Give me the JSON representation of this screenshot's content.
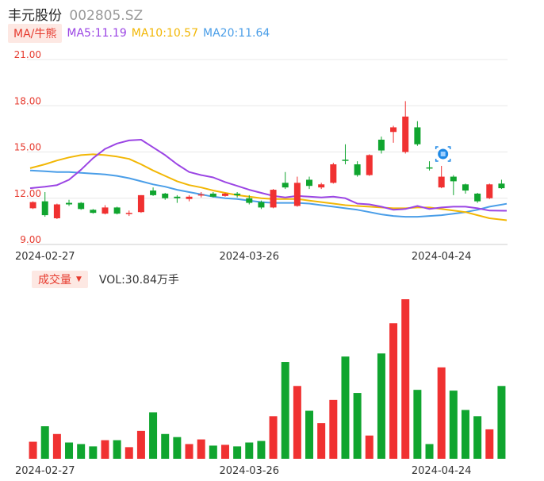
{
  "header": {
    "name": "丰元股份",
    "code": "002805.SZ"
  },
  "ma_legend": {
    "tag": "MA/牛熊",
    "items": [
      {
        "label": "MA5:11.19",
        "color": "#9b45e4"
      },
      {
        "label": "MA10:10.57",
        "color": "#f2b705"
      },
      {
        "label": "MA20:11.64",
        "color": "#4a9ee8"
      }
    ]
  },
  "volume_legend": {
    "tag": "成交量",
    "caret": "▼",
    "label": "VOL:30.84万手"
  },
  "colors": {
    "up": "#f03131",
    "down": "#10a52f",
    "axis_label": "#e63a2e",
    "grid": "#e8e8e8",
    "date_label": "#333333"
  },
  "chart_data": [
    {
      "type": "candlestick",
      "y_ticks": [
        "21.00",
        "18.00",
        "15.00",
        "12.00",
        "9.00"
      ],
      "y_tick_values": [
        21,
        18,
        15,
        12,
        9
      ],
      "ylim": [
        9,
        21
      ],
      "x_labels": [
        "2024-02-27",
        "2024-03-26",
        "2024-04-24"
      ],
      "x_label_indices": [
        1,
        18,
        34
      ],
      "candles": [
        {
          "o": 11.35,
          "c": 11.75,
          "h": 11.8,
          "l": 11.3
        },
        {
          "o": 11.8,
          "c": 10.9,
          "h": 12.4,
          "l": 10.8
        },
        {
          "o": 10.7,
          "c": 11.6,
          "h": 11.65,
          "l": 10.65
        },
        {
          "o": 11.7,
          "c": 11.6,
          "h": 11.9,
          "l": 11.5
        },
        {
          "o": 11.7,
          "c": 11.3,
          "h": 11.75,
          "l": 11.25
        },
        {
          "o": 11.25,
          "c": 11.05,
          "h": 11.3,
          "l": 11.0
        },
        {
          "o": 11.0,
          "c": 11.4,
          "h": 11.55,
          "l": 10.95
        },
        {
          "o": 11.4,
          "c": 11.0,
          "h": 11.45,
          "l": 10.95
        },
        {
          "o": 11.0,
          "c": 11.05,
          "h": 11.2,
          "l": 10.85
        },
        {
          "o": 11.1,
          "c": 12.2,
          "h": 12.2,
          "l": 11.05
        },
        {
          "o": 12.5,
          "c": 12.2,
          "h": 12.7,
          "l": 12.15
        },
        {
          "o": 12.3,
          "c": 12.0,
          "h": 12.35,
          "l": 11.9
        },
        {
          "o": 12.1,
          "c": 12.0,
          "h": 12.2,
          "l": 11.7
        },
        {
          "o": 11.95,
          "c": 12.1,
          "h": 12.2,
          "l": 11.8
        },
        {
          "o": 12.2,
          "c": 12.25,
          "h": 12.4,
          "l": 12.05
        },
        {
          "o": 12.3,
          "c": 12.1,
          "h": 12.4,
          "l": 12.05
        },
        {
          "o": 12.15,
          "c": 12.3,
          "h": 12.35,
          "l": 12.1
        },
        {
          "o": 12.3,
          "c": 12.2,
          "h": 12.4,
          "l": 12.05
        },
        {
          "o": 12.0,
          "c": 11.7,
          "h": 12.2,
          "l": 11.6
        },
        {
          "o": 11.75,
          "c": 11.4,
          "h": 11.85,
          "l": 11.3
        },
        {
          "o": 11.4,
          "c": 12.55,
          "h": 12.6,
          "l": 11.35
        },
        {
          "o": 13.0,
          "c": 12.7,
          "h": 13.7,
          "l": 12.6
        },
        {
          "o": 11.5,
          "c": 13.0,
          "h": 13.4,
          "l": 11.45
        },
        {
          "o": 13.2,
          "c": 12.8,
          "h": 13.4,
          "l": 12.6
        },
        {
          "o": 12.7,
          "c": 12.9,
          "h": 13.0,
          "l": 12.6
        },
        {
          "o": 13.0,
          "c": 14.2,
          "h": 14.3,
          "l": 12.95
        },
        {
          "o": 14.5,
          "c": 14.45,
          "h": 15.5,
          "l": 14.2
        },
        {
          "o": 14.2,
          "c": 13.5,
          "h": 14.4,
          "l": 13.4
        },
        {
          "o": 13.5,
          "c": 14.8,
          "h": 14.85,
          "l": 13.45
        },
        {
          "o": 15.8,
          "c": 15.1,
          "h": 16.0,
          "l": 14.9
        },
        {
          "o": 16.3,
          "c": 16.6,
          "h": 16.7,
          "l": 15.6
        },
        {
          "o": 15.0,
          "c": 17.3,
          "h": 18.3,
          "l": 14.9
        },
        {
          "o": 16.6,
          "c": 15.5,
          "h": 17.0,
          "l": 15.4
        },
        {
          "o": 14.0,
          "c": 13.95,
          "h": 14.4,
          "l": 13.8
        },
        {
          "o": 12.7,
          "c": 13.4,
          "h": 14.1,
          "l": 12.65
        },
        {
          "o": 13.4,
          "c": 13.1,
          "h": 13.5,
          "l": 12.2
        },
        {
          "o": 12.9,
          "c": 12.5,
          "h": 12.95,
          "l": 12.3
        },
        {
          "o": 12.3,
          "c": 11.8,
          "h": 12.35,
          "l": 11.7
        },
        {
          "o": 12.0,
          "c": 12.9,
          "h": 12.95,
          "l": 11.95
        },
        {
          "o": 12.95,
          "c": 12.65,
          "h": 13.2,
          "l": 12.6
        }
      ],
      "ma5": [
        12.65,
        12.75,
        12.85,
        13.2,
        13.85,
        14.6,
        15.2,
        15.55,
        15.75,
        15.8,
        15.3,
        14.8,
        14.2,
        13.7,
        13.5,
        13.35,
        13.05,
        12.8,
        12.55,
        12.35,
        12.15,
        12.05,
        12.15,
        12.1,
        12.05,
        12.1,
        12.0,
        11.65,
        11.6,
        11.45,
        11.25,
        11.3,
        11.5,
        11.3,
        11.4,
        11.45,
        11.45,
        11.35,
        11.2,
        11.19
      ],
      "ma10": [
        13.95,
        14.2,
        14.45,
        14.65,
        14.8,
        14.85,
        14.8,
        14.7,
        14.55,
        14.2,
        13.8,
        13.45,
        13.1,
        12.85,
        12.7,
        12.5,
        12.35,
        12.2,
        12.1,
        12.0,
        11.95,
        11.95,
        11.95,
        11.85,
        11.75,
        11.65,
        11.55,
        11.5,
        11.45,
        11.4,
        11.35,
        11.35,
        11.4,
        11.4,
        11.3,
        11.2,
        11.1,
        10.9,
        10.7,
        10.57
      ],
      "ma20": [
        13.8,
        13.75,
        13.7,
        13.7,
        13.65,
        13.6,
        13.55,
        13.45,
        13.3,
        13.1,
        12.9,
        12.75,
        12.55,
        12.4,
        12.25,
        12.1,
        12.0,
        11.95,
        11.85,
        11.75,
        11.7,
        11.7,
        11.7,
        11.65,
        11.55,
        11.45,
        11.35,
        11.25,
        11.1,
        10.95,
        10.85,
        10.8,
        10.8,
        10.85,
        10.9,
        11.0,
        11.1,
        11.25,
        11.45,
        11.64
      ]
    },
    {
      "type": "bar",
      "title": "成交量",
      "ylim": [
        0,
        20.6
      ],
      "values": [
        2.2,
        4.2,
        3.2,
        2.1,
        1.9,
        1.6,
        2.4,
        2.4,
        1.5,
        3.6,
        6.0,
        3.2,
        2.8,
        1.9,
        2.5,
        1.7,
        1.8,
        1.6,
        2.1,
        2.3,
        5.5,
        12.5,
        9.4,
        6.2,
        4.6,
        7.6,
        13.2,
        8.5,
        3.0,
        13.6,
        17.5,
        20.6,
        8.9,
        1.9,
        11.8,
        8.8,
        6.3,
        5.5,
        3.8,
        9.4
      ],
      "x_labels": [
        "2024-02-27",
        "2024-03-26",
        "2024-04-24"
      ],
      "x_label_indices": [
        1,
        18,
        34
      ]
    }
  ]
}
